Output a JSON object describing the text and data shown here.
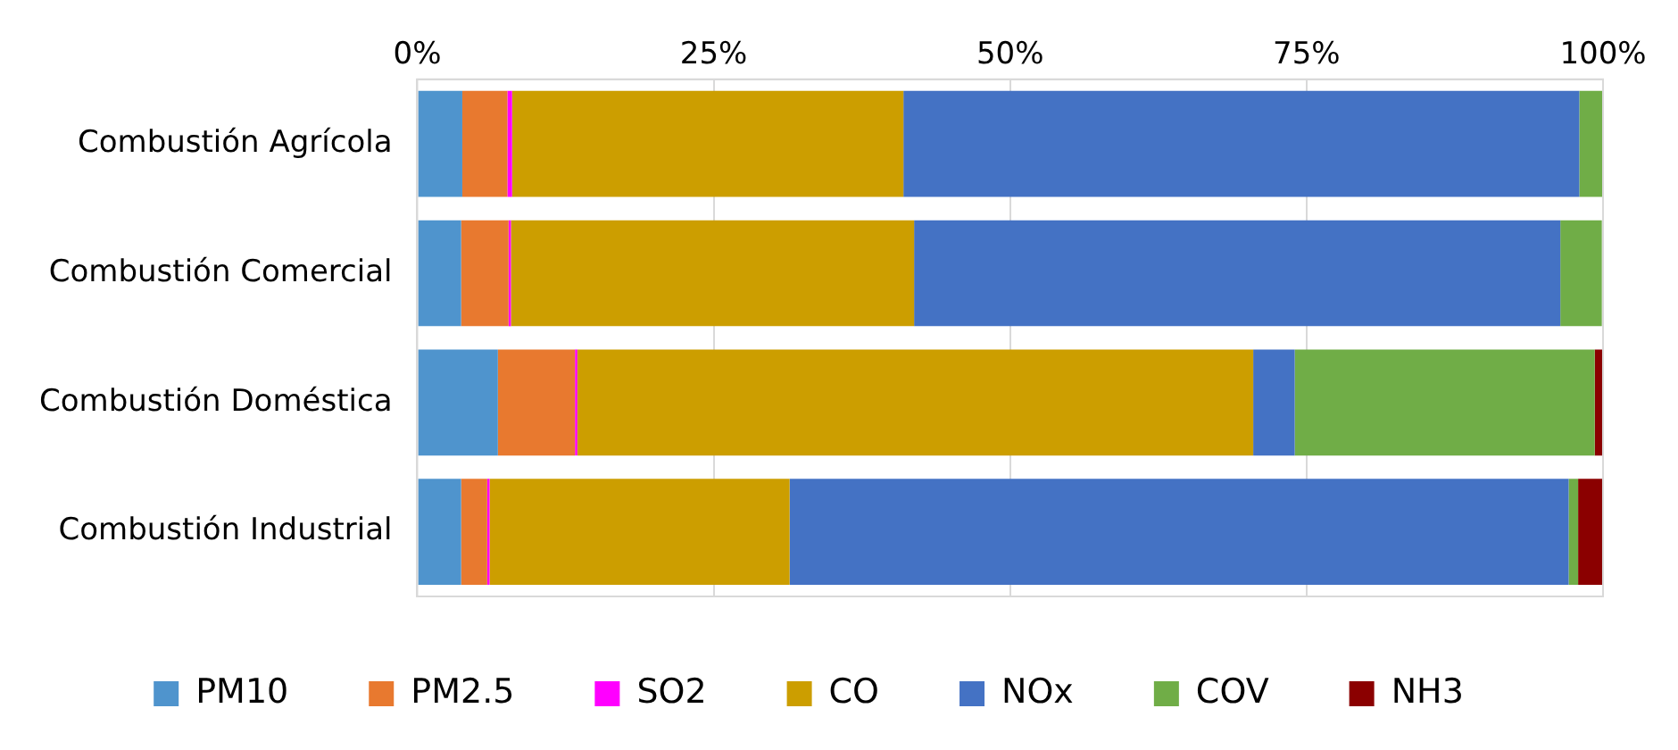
{
  "chart_data": {
    "type": "bar",
    "orientation": "horizontal",
    "stacked": true,
    "categories": [
      "Combustión Agrícola",
      "Combustión Comercial",
      "Combustión Doméstica",
      "Combustión Industrial"
    ],
    "series": [
      {
        "name": "PM10",
        "color": "#4f94cd",
        "values": [
          3.8,
          3.7,
          6.8,
          3.7
        ]
      },
      {
        "name": "PM2.5",
        "color": "#e8792f",
        "values": [
          3.8,
          4,
          6.5,
          2.2
        ]
      },
      {
        "name": "SO2",
        "color": "#ff00ff",
        "values": [
          0.4,
          0.2,
          0.2,
          0.2
        ]
      },
      {
        "name": "CO",
        "color": "#cc9e00",
        "values": [
          33,
          34,
          57,
          25.3
        ]
      },
      {
        "name": "NOx",
        "color": "#4472c4",
        "values": [
          57,
          54.5,
          3.5,
          65.7
        ]
      },
      {
        "name": "COV",
        "color": "#70ad47",
        "values": [
          2,
          3.5,
          25.3,
          0.8
        ]
      },
      {
        "name": "NH3",
        "color": "#8b0000",
        "values": [
          0,
          0,
          0.7,
          2.1
        ]
      }
    ],
    "xlim": [
      0,
      100
    ],
    "xticks": [
      {
        "value": 0,
        "label": "0%"
      },
      {
        "value": 25,
        "label": "25%"
      },
      {
        "value": 50,
        "label": "50%"
      },
      {
        "value": 75,
        "label": "75%"
      },
      {
        "value": 100,
        "label": "100%"
      }
    ],
    "grid": "x",
    "legend": "bottom"
  }
}
